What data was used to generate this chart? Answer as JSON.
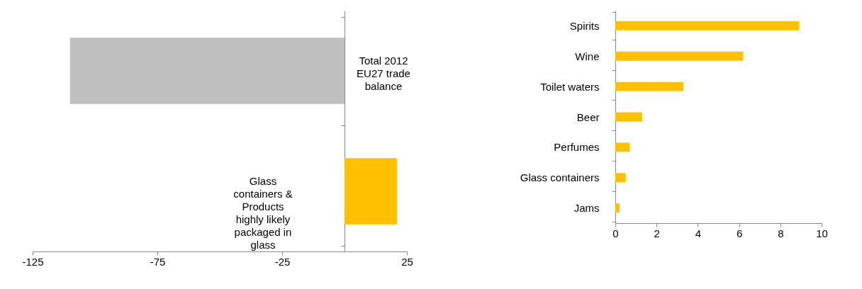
{
  "chart_data": [
    {
      "type": "bar",
      "orientation": "horizontal",
      "categories": [
        "Total 2012 EU27 trade balance",
        "Glass containers & Products highly likely packaged in glass"
      ],
      "values": [
        -110,
        21
      ],
      "colors": [
        "#bfbfbf",
        "#ffc000"
      ],
      "xlim": [
        -125,
        25
      ],
      "xticks": [
        -125,
        -75,
        -25,
        25
      ],
      "tick_labels": "x"
    },
    {
      "type": "bar",
      "orientation": "horizontal",
      "categories": [
        "Spirits",
        "Wine",
        "Toilet waters",
        "Beer",
        "Perfumes",
        "Glass containers",
        "Jams"
      ],
      "series": [
        {
          "color": "#ffc000",
          "values": [
            8.9,
            6.2,
            3.3,
            1.3,
            0.7,
            0.5,
            0.2
          ]
        }
      ],
      "xlim": [
        0,
        10
      ],
      "xticks": [
        0,
        2,
        4,
        6,
        8,
        10
      ]
    }
  ]
}
